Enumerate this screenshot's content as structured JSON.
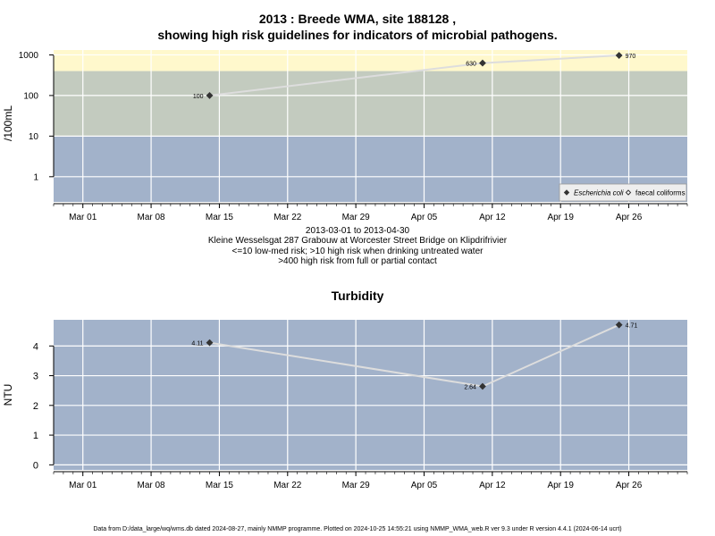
{
  "header": {
    "title_line1": "2013 : Breede WMA, site 188128 ,",
    "title_line2": "showing high risk guidelines for indicators of microbial pathogens."
  },
  "captions": [
    "2013-03-01 to 2013-04-30",
    "Kleine Wesselsgat 287 Grabouw at Worcester Street Bridge on Klipdrifrivier",
    "<=10 low-med risk; >10 high risk when drinking untreated water",
    ">400 high risk from full or partial contact"
  ],
  "footer": "Data from D:/data_large/wq/wms.db dated 2024-08-27, mainly NMMP programme. Plotted on 2024-10-25 14:55:21 using NMMP_WMA_web.R ver 9.3 under R version 4.4.1 (2024-06-14 ucrt)",
  "colors": {
    "low_band": "#a2b2ca",
    "mid_band": "#c3cbbf",
    "high_band": "#fff8cc",
    "line": "#dddddd",
    "point": "#333333",
    "grid": "#ffffff"
  },
  "chart_data": [
    {
      "type": "line",
      "title": "",
      "ylabel": "/100mL",
      "yscale": "log",
      "x_ticks": [
        "Mar 01",
        "Mar 08",
        "Mar 15",
        "Mar 22",
        "Mar 29",
        "Apr 05",
        "Apr 12",
        "Apr 19",
        "Apr 26"
      ],
      "y_ticks": [
        "1",
        "10",
        "100",
        "1000"
      ],
      "risk_bands": [
        {
          "from": 0,
          "to": 10
        },
        {
          "from": 10,
          "to": 400
        },
        {
          "from": 400,
          "to": 1000
        }
      ],
      "series": [
        {
          "name": "Escherichia coli",
          "x": [
            "2013-03-14",
            "2013-04-11",
            "2013-04-25"
          ],
          "y": [
            100,
            630,
            970
          ],
          "labels": [
            "100",
            "630",
            "970"
          ]
        }
      ],
      "legend": {
        "position": "bottom-right",
        "entries": [
          {
            "label": "Escherichia coli",
            "marker": "filled-diamond"
          },
          {
            "label": "faecal coliforms",
            "marker": "open-diamond"
          }
        ]
      }
    },
    {
      "type": "line",
      "title": "Turbidity",
      "ylabel": "NTU",
      "x_ticks": [
        "Mar 01",
        "Mar 08",
        "Mar 15",
        "Mar 22",
        "Mar 29",
        "Apr 05",
        "Apr 12",
        "Apr 19",
        "Apr 26"
      ],
      "y_ticks": [
        "0",
        "1",
        "2",
        "3",
        "4"
      ],
      "series": [
        {
          "x": [
            "2013-03-14",
            "2013-04-11",
            "2013-04-25"
          ],
          "y": [
            4.11,
            2.64,
            4.71
          ],
          "labels": [
            "4.11",
            "2.64",
            "4.71"
          ]
        }
      ]
    }
  ]
}
